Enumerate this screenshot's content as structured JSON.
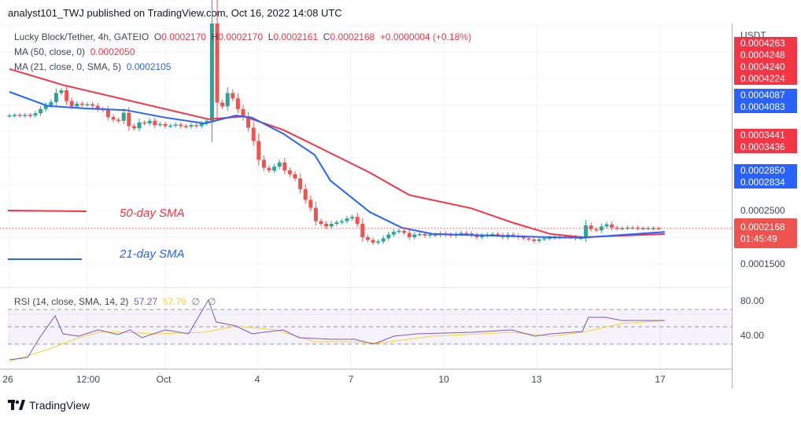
{
  "header": {
    "published": "analyst101_TWJ published on TradingView.com, Oct 16, 2022 14:08 UTC"
  },
  "legend": {
    "symbol": "Lucky Block/Tether, 4h, GATEIO",
    "o_label": "O",
    "o": "0.0002170",
    "h_label": "H",
    "h": "0.0002170",
    "l_label": "L",
    "l": "0.0002161",
    "c_label": "C",
    "c": "0.0002168",
    "change": "+0.0000004 (+0.18%)",
    "ma50_label": "MA (50, close, 0)",
    "ma50_value": "0.0002050",
    "ma21_label": "MA (21, close, 0, SMA, 5)",
    "ma21_value": "0.0002105",
    "rsi_label": "RSI (14, close, SMA, 14, 2)",
    "rsi_value": "57.27",
    "rsi_sma_value": "57.79",
    "rsi_extra1": "∅",
    "rsi_extra2": "∅"
  },
  "annotations": {
    "sma50": "50-day SMA",
    "sma21": "21-day SMA"
  },
  "price_axis": {
    "currency": "USDT",
    "labels": [
      {
        "text": "0.0004263",
        "color": "#f23645"
      },
      {
        "text": "0.0004248",
        "color": "#f23645"
      },
      {
        "text": "0.0004240",
        "color": "#f23645"
      },
      {
        "text": "0.0004224",
        "color": "#f23645"
      },
      {
        "text": "0.0004087",
        "color": "#2962ff"
      },
      {
        "text": "0.0004083",
        "color": "#2962ff"
      },
      {
        "text": "0.0003441",
        "color": "#f23645"
      },
      {
        "text": "0.0003436",
        "color": "#f23645"
      },
      {
        "text": "0.0002850",
        "color": "#2962ff"
      },
      {
        "text": "0.0002834",
        "color": "#2962ff"
      }
    ],
    "tick_2500": "0.0002500",
    "tick_1500": "0.0001500",
    "last_price": "0.0002168",
    "countdown": "01:45:49"
  },
  "rsi_axis": {
    "t80": "80.00",
    "t40": "40.00"
  },
  "time_axis": [
    "26",
    "12:00",
    "Oct",
    "4",
    "7",
    "10",
    "13",
    "17"
  ],
  "footer": {
    "brand": "TradingView"
  },
  "colors": {
    "up": "#26a69a",
    "down": "#ef5350",
    "ma50": "#f23645",
    "ma21": "#2962ff",
    "rsi": "#7e57c2",
    "rsi_sma": "#f5d533"
  },
  "chart_data": {
    "type": "candlestick",
    "closes": [
      0.000428,
      0.000429,
      0.000428,
      0.000429,
      0.000428,
      0.000432,
      0.00044,
      0.000447,
      0.000453,
      0.00047,
      0.000475,
      0.000455,
      0.000445,
      0.00045,
      0.000448,
      0.000449,
      0.000446,
      0.00044,
      0.000438,
      0.000425,
      0.00042,
      0.000418,
      0.000433,
      0.000408,
      0.000404,
      0.000415,
      0.000413,
      0.000418,
      0.00041,
      0.000412,
      0.000408,
      0.000409,
      0.000411,
      0.000408,
      0.000407,
      0.00041,
      0.000408,
      0.000413,
      0.000418,
      0.0006,
      0.000452,
      0.000445,
      0.00047,
      0.00046,
      0.00044,
      0.000425,
      0.000405,
      0.00038,
      0.000345,
      0.00033,
      0.000325,
      0.000332,
      0.00034,
      0.000325,
      0.000318,
      0.00031,
      0.00029,
      0.00027,
      0.000255,
      0.00023,
      0.000225,
      0.00022,
      0.000225,
      0.000228,
      0.00023,
      0.000235,
      0.000238,
      0.000225,
      0.0002,
      0.000195,
      0.00019,
      0.000192,
      0.000198,
      0.000205,
      0.00021,
      0.000212,
      0.000208,
      0.0002,
      0.000205,
      0.000206,
      0.000203,
      0.000205,
      0.000204,
      0.000207,
      0.000205,
      0.000203,
      0.000206,
      0.000208,
      0.000207,
      0.000204,
      0.0002,
      0.000203,
      0.000205,
      0.000206,
      0.000204,
      0.0002,
      0.000205,
      0.000203,
      0.0002,
      0.000198,
      0.000196,
      0.000193,
      0.000196,
      0.000198,
      0.000199,
      0.0002,
      0.0002,
      0.000201,
      0.0002,
      0.000198,
      0.000199,
      0.000222,
      0.000215,
      0.000213,
      0.00022,
      0.000224,
      0.000218,
      0.000217,
      0.000217,
      0.000218,
      0.000218,
      0.000217,
      0.000217,
      0.000217,
      0.000217,
      0.0002168
    ],
    "ma50": [
      [
        0,
        0.000515
      ],
      [
        10.3,
        0.000485
      ],
      [
        38.3,
        0.000421
      ],
      [
        45.2,
        0.000426
      ],
      [
        52.7,
        0.000401
      ],
      [
        58.8,
        0.000372
      ],
      [
        69.4,
        0.000321
      ],
      [
        77,
        0.000279
      ],
      [
        89,
        0.000254
      ],
      [
        96.7,
        0.000228
      ],
      [
        104.2,
        0.000206
      ],
      [
        110.3,
        0.0002
      ],
      [
        126.2,
        0.000206
      ]
    ],
    "ma21": [
      [
        0,
        0.000472
      ],
      [
        7.3,
        0.000446
      ],
      [
        14.8,
        0.000441
      ],
      [
        22.4,
        0.000438
      ],
      [
        30,
        0.000424
      ],
      [
        37.6,
        0.000413
      ],
      [
        43.6,
        0.000428
      ],
      [
        46.7,
        0.000424
      ],
      [
        52.7,
        0.000394
      ],
      [
        58.8,
        0.000354
      ],
      [
        61.8,
        0.000306
      ],
      [
        69.4,
        0.000247
      ],
      [
        75.5,
        0.000218
      ],
      [
        81.5,
        0.000206
      ],
      [
        104.2,
        0.0002
      ],
      [
        110.3,
        0.000199
      ],
      [
        126.2,
        0.00021
      ]
    ],
    "rsi": [
      [
        0,
        11.8
      ],
      [
        3.5,
        14.5
      ],
      [
        5.8,
        37.3
      ],
      [
        8.8,
        62.7
      ],
      [
        10.3,
        41.8
      ],
      [
        13.3,
        39.1
      ],
      [
        17.1,
        46.4
      ],
      [
        20.9,
        40.9
      ],
      [
        23.2,
        46.4
      ],
      [
        25.5,
        37.3
      ],
      [
        30,
        46.4
      ],
      [
        34.5,
        41.8
      ],
      [
        38.3,
        80.9
      ],
      [
        39.8,
        55.5
      ],
      [
        43.6,
        50.9
      ],
      [
        46.7,
        41.8
      ],
      [
        52.7,
        46.4
      ],
      [
        55.8,
        37.3
      ],
      [
        61.8,
        35.5
      ],
      [
        66.4,
        35.5
      ],
      [
        70.2,
        30
      ],
      [
        74,
        39.1
      ],
      [
        78.5,
        41.8
      ],
      [
        89.1,
        43.6
      ],
      [
        96.7,
        46.4
      ],
      [
        101.2,
        39.1
      ],
      [
        104.2,
        41.8
      ],
      [
        110.3,
        44.5
      ],
      [
        111.5,
        60.9
      ],
      [
        114.8,
        60.9
      ],
      [
        117.9,
        57.3
      ],
      [
        126.2,
        57.3
      ]
    ],
    "rsi_sma": [
      [
        0,
        10
      ],
      [
        7.3,
        23.6
      ],
      [
        13.3,
        37.3
      ],
      [
        17.9,
        44.5
      ],
      [
        28.5,
        41.8
      ],
      [
        37.6,
        43.6
      ],
      [
        43.6,
        50.9
      ],
      [
        51.2,
        46.4
      ],
      [
        58.8,
        32.7
      ],
      [
        64.8,
        32.7
      ],
      [
        70.9,
        30.9
      ],
      [
        81.5,
        39.1
      ],
      [
        96.7,
        43.6
      ],
      [
        104.2,
        39.1
      ],
      [
        110.3,
        43.6
      ],
      [
        117.9,
        53.6
      ],
      [
        126.2,
        57.3
      ]
    ],
    "rsi_levels": [
      70,
      50,
      30
    ],
    "price_reference": [
      0.00025,
      0.00015
    ],
    "rsi_reference": [
      80,
      40
    ]
  }
}
